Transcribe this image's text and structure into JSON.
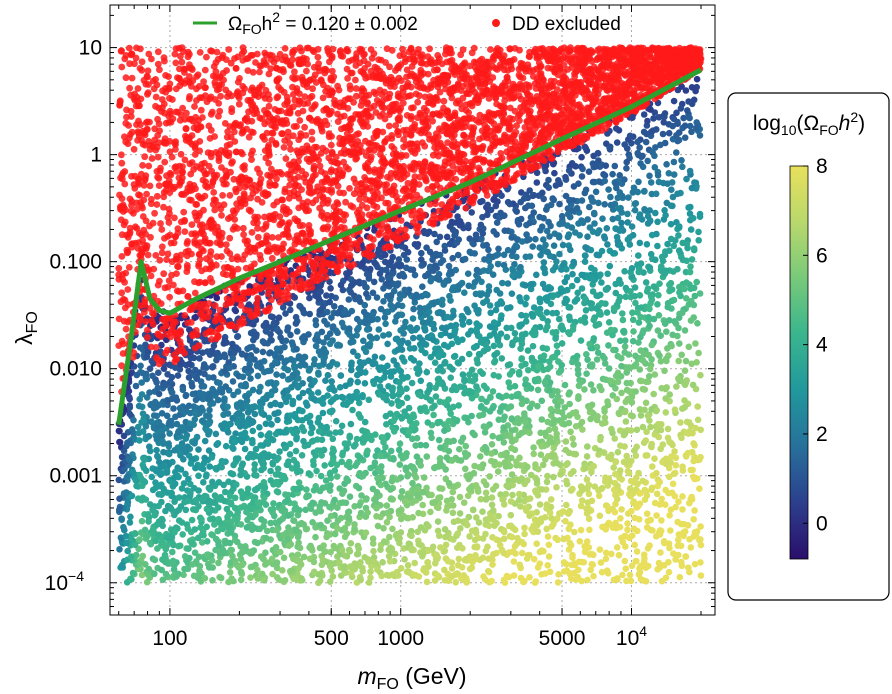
{
  "chart_data": {
    "type": "scatter",
    "title": "",
    "xlabel": {
      "main": "m",
      "sub": "FO",
      "unit": " (GeV)"
    },
    "ylabel": {
      "main": "λ",
      "sub": "FO"
    },
    "xscale": "log",
    "yscale": "log",
    "xlim": [
      55,
      23000
    ],
    "ylim": [
      5e-05,
      25
    ],
    "grid": true,
    "x_ticks": [
      {
        "value": 100,
        "label": "100"
      },
      {
        "value": 500,
        "label": "500"
      },
      {
        "value": 1000,
        "label": "1000"
      },
      {
        "value": 5000,
        "label": "5000"
      },
      {
        "value": 10000,
        "label": "10",
        "sup": "4"
      }
    ],
    "y_ticks": [
      {
        "value": 10,
        "label": "10"
      },
      {
        "value": 1,
        "label": "1"
      },
      {
        "value": 0.1,
        "label": "0.100"
      },
      {
        "value": 0.01,
        "label": "0.010"
      },
      {
        "value": 0.001,
        "label": "0.001"
      },
      {
        "value": 0.0001,
        "label": "10",
        "sup": "−4"
      }
    ],
    "legend": {
      "placement": "top-center",
      "entries": [
        {
          "kind": "line",
          "color": "#2ca02c",
          "parts": [
            "Ω",
            "FO",
            "h",
            "2",
            " = 0.120 ± 0.002"
          ]
        },
        {
          "kind": "point",
          "color": "#ff1a1a",
          "label": "DD excluded"
        }
      ]
    },
    "series": [
      {
        "name": "DD excluded",
        "color": "#ff1a1a",
        "region": "above the relic-density line, up to λ = 10",
        "x_range": [
          60,
          20000
        ],
        "y_range": [
          0.0035,
          10
        ]
      },
      {
        "name": "",
        "region": "below the relic-density line, down to λ = 10^-4",
        "colored_by": "log10(Ω h²)",
        "x_range": [
          60,
          20000
        ],
        "y_range": [
          0.0001,
          6
        ]
      },
      {
        "name": "Ω_FO h² = 0.120 ± 0.002",
        "color": "#2ca02c",
        "x": [
          60,
          68,
          75,
          82,
          90,
          100,
          130,
          200,
          300,
          500,
          1000,
          2000,
          5000,
          10000,
          20000
        ],
        "y": [
          0.003,
          0.02,
          0.1,
          0.045,
          0.035,
          0.033,
          0.045,
          0.07,
          0.1,
          0.16,
          0.3,
          0.55,
          1.4,
          2.8,
          6.2
        ]
      }
    ],
    "colorbar": {
      "title": {
        "prefix": "log",
        "base": "10",
        "open": "(Ω",
        "sub": "FO",
        "var": "h",
        "sup": "2",
        "close": ")"
      },
      "range": [
        -0.8,
        8
      ],
      "ticks": [
        0,
        2,
        4,
        6,
        8
      ],
      "colormap": [
        "#2a0e6b",
        "#2c3f8d",
        "#27709b",
        "#21989c",
        "#3ab58d",
        "#78c97a",
        "#b9d86c",
        "#e8e05c"
      ]
    }
  }
}
